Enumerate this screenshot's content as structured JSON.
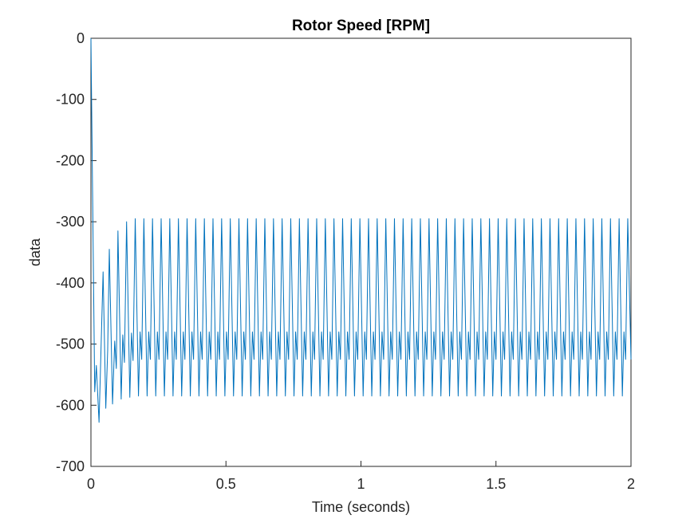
{
  "chart_data": {
    "type": "line",
    "title": "Rotor Speed [RPM]",
    "xlabel": "Time (seconds)",
    "ylabel": "data",
    "color": "#0072bd",
    "xlim": [
      0,
      2
    ],
    "xticks": [
      0,
      0.5,
      1,
      1.5,
      2
    ],
    "ylim": [
      -700,
      0
    ],
    "yticks": [
      -700,
      -600,
      -500,
      -400,
      -300,
      -200,
      -100,
      0
    ],
    "x": [
      0,
      0.006,
      0.014,
      0.02,
      0.03,
      0.045,
      0.055,
      0.062,
      0.068,
      0.08,
      0.088,
      0.094,
      0.1,
      0.112,
      0.118,
      0.124,
      0.132,
      0.144,
      0.15,
      0.156,
      0.164,
      0.176,
      0.182,
      0.188,
      0.196,
      0.208,
      0.214,
      0.22,
      0.228,
      0.24,
      0.246,
      0.252,
      0.26,
      0.272,
      0.278,
      0.284,
      0.292,
      0.304,
      0.31,
      0.316,
      0.324,
      0.336,
      0.342,
      0.348,
      0.356,
      0.368,
      0.374,
      0.38,
      0.388,
      0.4,
      0.406,
      0.412,
      0.42,
      0.432,
      0.438,
      0.444,
      0.452,
      0.464,
      0.47,
      0.476,
      0.484,
      0.496,
      0.502,
      0.508,
      0.516,
      0.528,
      0.534,
      0.54,
      0.548,
      0.56,
      0.566,
      0.572,
      0.58,
      0.592,
      0.598,
      0.604,
      0.612,
      0.624,
      0.63,
      0.636,
      0.644,
      0.656,
      0.662,
      0.668,
      0.676,
      0.688,
      0.694,
      0.7,
      0.708,
      0.72,
      0.726,
      0.732,
      0.74,
      0.752,
      0.758,
      0.764,
      0.772,
      0.784,
      0.79,
      0.796,
      0.804,
      0.816,
      0.822,
      0.828,
      0.836,
      0.848,
      0.854,
      0.86,
      0.868,
      0.88,
      0.886,
      0.892,
      0.9,
      0.912,
      0.918,
      0.924,
      0.932,
      0.944,
      0.95,
      0.956,
      0.964,
      0.976,
      0.982,
      0.988,
      0.996,
      1.008,
      1.014,
      1.02,
      1.028,
      1.04,
      1.046,
      1.052,
      1.06,
      1.072,
      1.078,
      1.084,
      1.092,
      1.104,
      1.11,
      1.116,
      1.124,
      1.136,
      1.142,
      1.148,
      1.156,
      1.168,
      1.174,
      1.18,
      1.188,
      1.2,
      1.206,
      1.212,
      1.22,
      1.232,
      1.238,
      1.244,
      1.252,
      1.264,
      1.27,
      1.276,
      1.284,
      1.296,
      1.302,
      1.308,
      1.316,
      1.328,
      1.334,
      1.34,
      1.348,
      1.36,
      1.366,
      1.372,
      1.38,
      1.392,
      1.398,
      1.404,
      1.412,
      1.424,
      1.43,
      1.436,
      1.444,
      1.456,
      1.462,
      1.468,
      1.476,
      1.488,
      1.494,
      1.5,
      1.508,
      1.52,
      1.526,
      1.532,
      1.54,
      1.552,
      1.558,
      1.564,
      1.572,
      1.584,
      1.59,
      1.596,
      1.604,
      1.616,
      1.622,
      1.628,
      1.636,
      1.648,
      1.654,
      1.66,
      1.668,
      1.68,
      1.686,
      1.692,
      1.7,
      1.712,
      1.718,
      1.724,
      1.732,
      1.744,
      1.75,
      1.756,
      1.764,
      1.776,
      1.782,
      1.788,
      1.796,
      1.808,
      1.814,
      1.82,
      1.828,
      1.84,
      1.846,
      1.852,
      1.86,
      1.872,
      1.878,
      1.884,
      1.892,
      1.904,
      1.91,
      1.916,
      1.924,
      1.936,
      1.942,
      1.948,
      1.956,
      1.968,
      1.974,
      1.98,
      1.988,
      2.0
    ],
    "values": [
      0,
      -250,
      -578,
      -535,
      -628,
      -382,
      -605,
      -510,
      -345,
      -598,
      -495,
      -540,
      -315,
      -590,
      -485,
      -530,
      -300,
      -587,
      -482,
      -527,
      -295,
      -585,
      -480,
      -525,
      -295,
      -585,
      -480,
      -525,
      -295,
      -585,
      -480,
      -525,
      -295,
      -585,
      -480,
      -525,
      -295,
      -585,
      -480,
      -525,
      -295,
      -585,
      -480,
      -525,
      -295,
      -585,
      -480,
      -525,
      -295,
      -585,
      -480,
      -525,
      -295,
      -585,
      -480,
      -525,
      -295,
      -585,
      -480,
      -525,
      -295,
      -585,
      -480,
      -525,
      -295,
      -585,
      -480,
      -525,
      -295,
      -585,
      -480,
      -525,
      -295,
      -585,
      -480,
      -525,
      -295,
      -585,
      -480,
      -525,
      -295,
      -585,
      -480,
      -525,
      -295,
      -585,
      -480,
      -525,
      -295,
      -585,
      -480,
      -525,
      -295,
      -585,
      -480,
      -525,
      -295,
      -585,
      -480,
      -525,
      -295,
      -585,
      -480,
      -525,
      -295,
      -585,
      -480,
      -525,
      -295,
      -585,
      -480,
      -525,
      -295,
      -585,
      -480,
      -525,
      -295,
      -585,
      -480,
      -525,
      -295,
      -585,
      -480,
      -525,
      -295,
      -585,
      -480,
      -525,
      -295,
      -585,
      -480,
      -525,
      -295,
      -585,
      -480,
      -525,
      -295,
      -585,
      -480,
      -525,
      -295,
      -585,
      -480,
      -525,
      -295,
      -585,
      -480,
      -525,
      -295,
      -585,
      -480,
      -525,
      -295,
      -585,
      -480,
      -525,
      -295,
      -585,
      -480,
      -525,
      -295,
      -585,
      -480,
      -525,
      -295,
      -585,
      -480,
      -525,
      -295,
      -585,
      -480,
      -525,
      -295,
      -585,
      -480,
      -525,
      -295,
      -585,
      -480,
      -525,
      -295,
      -585,
      -480,
      -525,
      -295,
      -585,
      -480,
      -525,
      -295,
      -585,
      -480,
      -525,
      -295,
      -585,
      -480,
      -525,
      -295,
      -585,
      -480,
      -525,
      -295,
      -585,
      -480,
      -525,
      -295,
      -585,
      -480,
      -525,
      -295,
      -585,
      -480,
      -525,
      -295,
      -585,
      -480,
      -525,
      -295,
      -585,
      -480,
      -525,
      -295,
      -585,
      -480,
      -525,
      -295,
      -585,
      -480,
      -525,
      -295,
      -585,
      -480,
      -525,
      -295,
      -585,
      -480,
      -525,
      -295,
      -585,
      -480,
      -525,
      -295,
      -585,
      -480,
      -525,
      -295,
      -585,
      -480,
      -525,
      -295,
      -525
    ]
  }
}
